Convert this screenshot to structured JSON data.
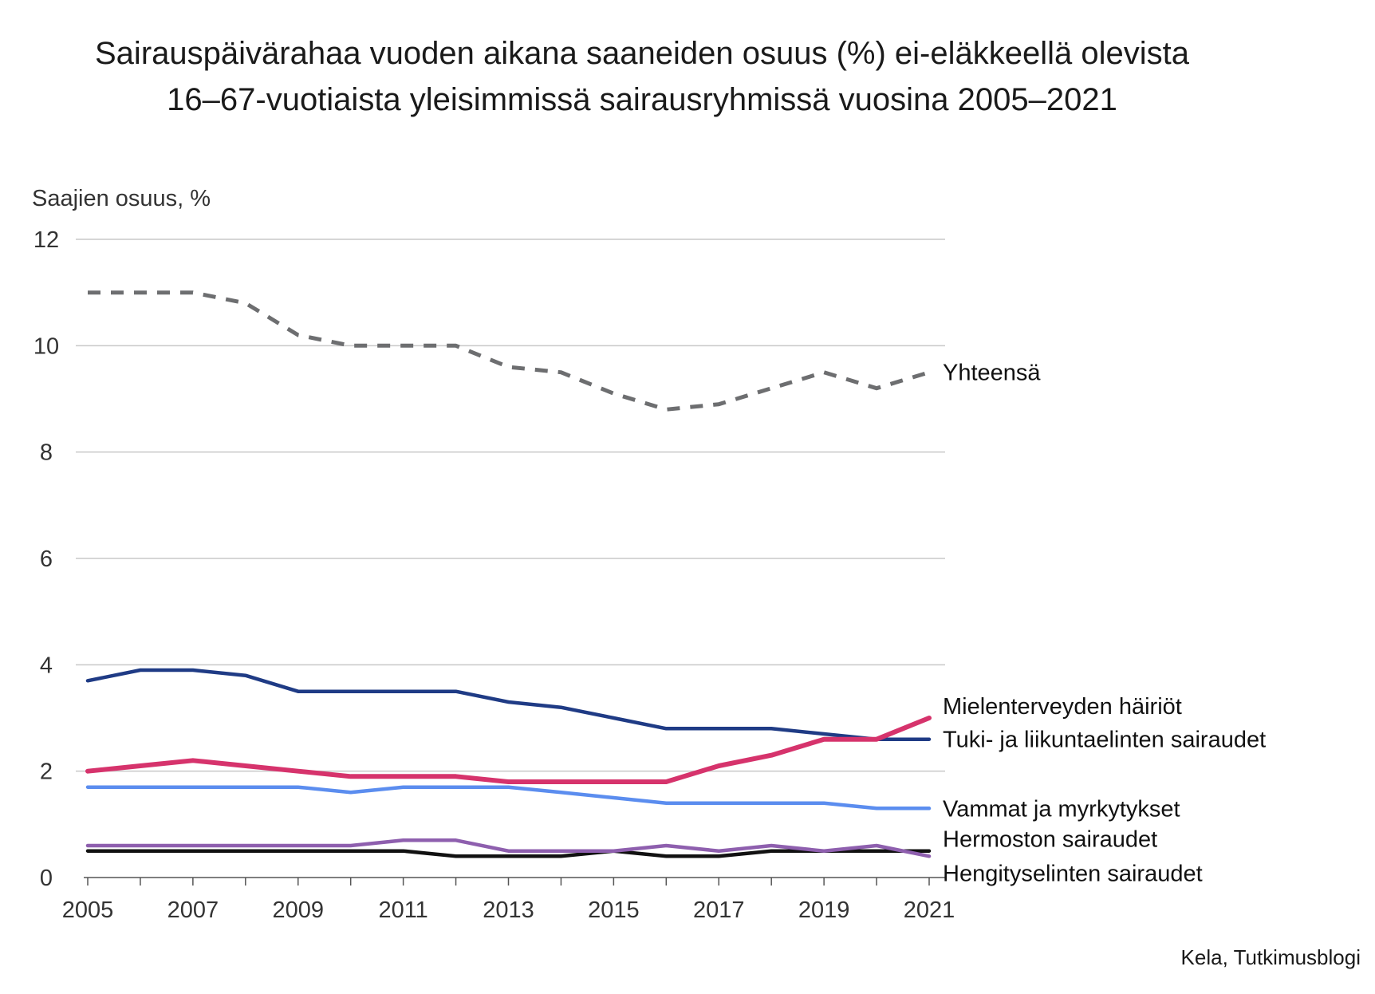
{
  "chart_data": {
    "type": "line",
    "title": "Sairauspäivärahaa vuoden aikana saaneiden osuus (%) ei-eläkkeellä olevista",
    "subtitle": "16–67-vuotiaista yleisimmissä sairausryhmissä vuosina 2005–2021",
    "ylabel": "Saajien osuus, %",
    "xlabel": "",
    "ylim": [
      0,
      12
    ],
    "yticks": [
      0,
      2,
      4,
      6,
      8,
      10,
      12
    ],
    "xlim": [
      2005,
      2021
    ],
    "xticks": [
      2005,
      2007,
      2009,
      2011,
      2013,
      2015,
      2017,
      2019,
      2021
    ],
    "grid": "horizontal",
    "x": [
      2005,
      2006,
      2007,
      2008,
      2009,
      2010,
      2011,
      2012,
      2013,
      2014,
      2015,
      2016,
      2017,
      2018,
      2019,
      2020,
      2021
    ],
    "series": [
      {
        "name": "Yhteensä",
        "color": "#6d6e70",
        "dashed": true,
        "values": [
          11.0,
          11.0,
          11.0,
          10.8,
          10.2,
          10.0,
          10.0,
          10.0,
          9.6,
          9.5,
          9.1,
          8.8,
          8.9,
          9.2,
          9.5,
          9.2,
          9.5
        ]
      },
      {
        "name": "Mielenterveyden häiriöt",
        "color": "#d6336c",
        "dashed": false,
        "values": [
          2.0,
          2.1,
          2.2,
          2.1,
          2.0,
          1.9,
          1.9,
          1.9,
          1.8,
          1.8,
          1.8,
          1.8,
          2.1,
          2.3,
          2.6,
          2.6,
          3.0
        ]
      },
      {
        "name": "Tuki- ja liikuntaelinten sairaudet",
        "color": "#1f3b85",
        "dashed": false,
        "values": [
          3.7,
          3.9,
          3.9,
          3.8,
          3.5,
          3.5,
          3.5,
          3.5,
          3.3,
          3.2,
          3.0,
          2.8,
          2.8,
          2.8,
          2.7,
          2.6,
          2.6
        ]
      },
      {
        "name": "Vammat ja myrkytykset",
        "color": "#5b8def",
        "dashed": false,
        "values": [
          1.7,
          1.7,
          1.7,
          1.7,
          1.7,
          1.6,
          1.7,
          1.7,
          1.7,
          1.6,
          1.5,
          1.4,
          1.4,
          1.4,
          1.4,
          1.3,
          1.3
        ]
      },
      {
        "name": "Hermoston sairaudet",
        "color": "#111111",
        "dashed": false,
        "values": [
          0.5,
          0.5,
          0.5,
          0.5,
          0.5,
          0.5,
          0.5,
          0.4,
          0.4,
          0.4,
          0.5,
          0.4,
          0.4,
          0.5,
          0.5,
          0.5,
          0.5
        ]
      },
      {
        "name": "Hengityselinten sairaudet",
        "color": "#8e5fae",
        "dashed": false,
        "values": [
          0.6,
          0.6,
          0.6,
          0.6,
          0.6,
          0.6,
          0.7,
          0.7,
          0.5,
          0.5,
          0.5,
          0.6,
          0.5,
          0.6,
          0.5,
          0.6,
          0.4
        ]
      }
    ],
    "label_colors": {
      "Yhteensä": "#111111",
      "Mielenterveyden häiriöt": "#d6336c",
      "Tuki- ja liikuntaelinten sairaudet": "#111111",
      "Vammat ja myrkytykset": "#111111",
      "Hermoston sairaudet": "#111111",
      "Hengityselinten sairaudet": "#111111"
    }
  },
  "source": "Kela, Tutkimusblogi"
}
